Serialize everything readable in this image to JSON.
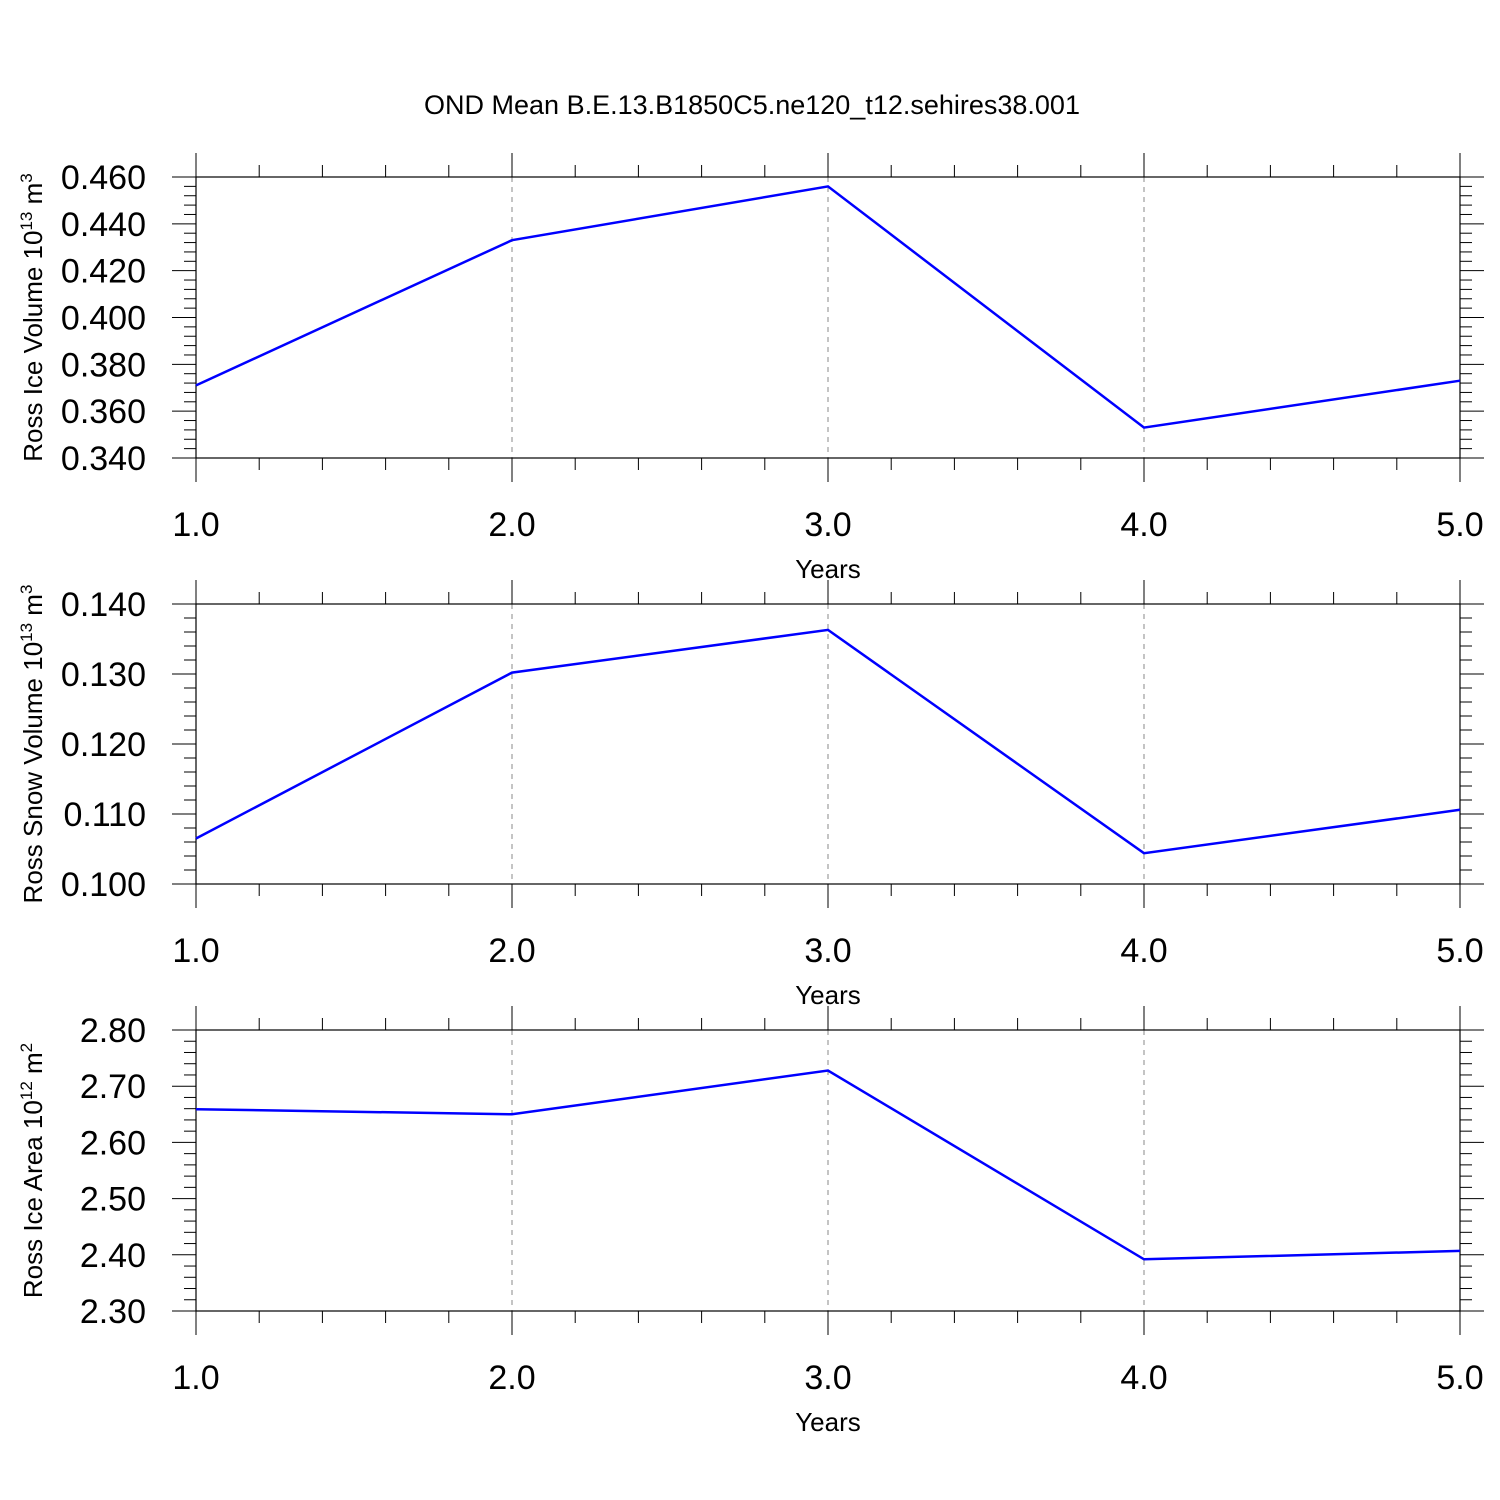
{
  "title": "OND Mean B.E.13.B1850C5.ne120_t12.sehires38.001",
  "colors": {
    "line": "#0000ff",
    "axis": "#000000",
    "grid": "#888888"
  },
  "chart_data": [
    {
      "type": "line",
      "title": "",
      "xlabel": "Years",
      "ylabel": {
        "text": "Ross Ice Volume 10",
        "exp": "13",
        "unit": " m",
        "unit_exp": "3"
      },
      "x": [
        1.0,
        2.0,
        3.0,
        4.0,
        5.0
      ],
      "xlim": [
        1.0,
        5.0
      ],
      "xticks": [
        "1.0",
        "2.0",
        "3.0",
        "4.0",
        "5.0"
      ],
      "ylim": [
        0.34,
        0.46
      ],
      "yticks": [
        "0.340",
        "0.360",
        "0.380",
        "0.400",
        "0.420",
        "0.440",
        "0.460"
      ],
      "series": [
        {
          "values": [
            0.371,
            0.433,
            0.456,
            0.353,
            0.373
          ]
        }
      ],
      "grid": "vertical dashed at major x ticks"
    },
    {
      "type": "line",
      "title": "",
      "xlabel": "Years",
      "ylabel": {
        "text": "Ross Snow Volume 10",
        "exp": "13",
        "unit": " m",
        "unit_exp": "3"
      },
      "x": [
        1.0,
        2.0,
        3.0,
        4.0,
        5.0
      ],
      "xlim": [
        1.0,
        5.0
      ],
      "xticks": [
        "1.0",
        "2.0",
        "3.0",
        "4.0",
        "5.0"
      ],
      "ylim": [
        0.1,
        0.14
      ],
      "yticks": [
        "0.100",
        "0.110",
        "0.120",
        "0.130",
        "0.140"
      ],
      "series": [
        {
          "values": [
            0.1065,
            0.1302,
            0.1363,
            0.1044,
            0.1106
          ]
        }
      ],
      "grid": "vertical dashed at major x ticks"
    },
    {
      "type": "line",
      "title": "",
      "xlabel": "Years",
      "ylabel": {
        "text": "Ross Ice Area 10",
        "exp": "12",
        "unit": " m",
        "unit_exp": "2"
      },
      "x": [
        1.0,
        2.0,
        3.0,
        4.0,
        5.0
      ],
      "xlim": [
        1.0,
        5.0
      ],
      "xticks": [
        "1.0",
        "2.0",
        "3.0",
        "4.0",
        "5.0"
      ],
      "ylim": [
        2.3,
        2.8
      ],
      "yticks": [
        "2.30",
        "2.40",
        "2.50",
        "2.60",
        "2.70",
        "2.80"
      ],
      "series": [
        {
          "values": [
            2.659,
            2.65,
            2.728,
            2.392,
            2.407
          ]
        }
      ],
      "grid": "vertical dashed at major x ticks"
    }
  ]
}
